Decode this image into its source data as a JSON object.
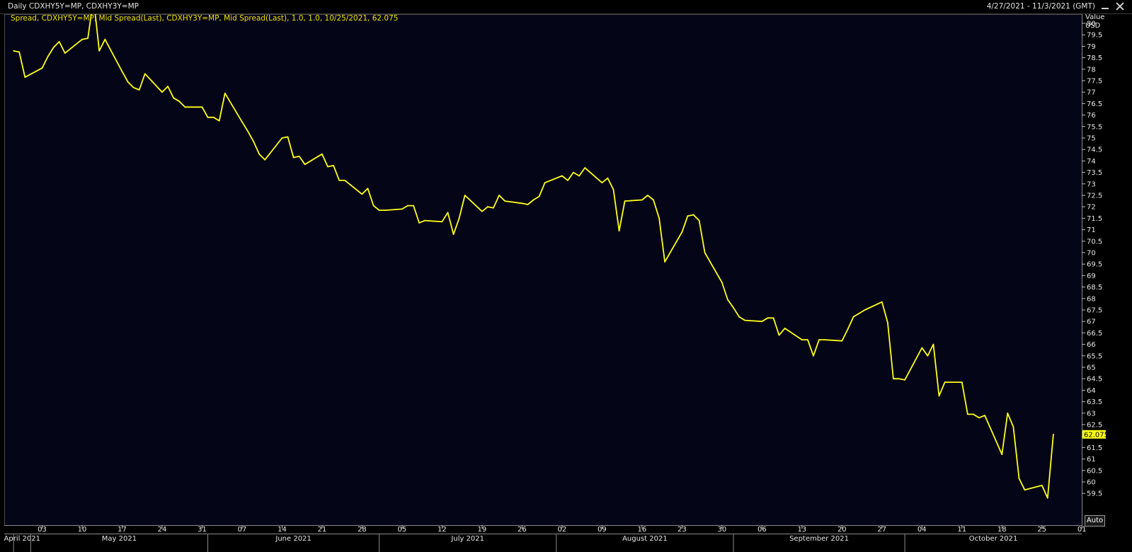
{
  "window": {
    "title": "Daily CDXHY5Y=MP, CDXHY3Y=MP",
    "date_range": "4/27/2021 - 11/3/2021 (GMT)"
  },
  "legend": {
    "text": "Spread, CDXHY5Y=MP, Mid Spread(Last), CDXHY3Y=MP, Mid Spread(Last),  1.0, 1.0, 10/25/2021, 62.075"
  },
  "controls": {
    "auto_label": "Auto"
  },
  "colors": {
    "background": "#000000",
    "plot_background": "#050518",
    "line": "#ffff1a",
    "grid": "#2c3040"
  },
  "chart_data": {
    "type": "line",
    "title": "",
    "ylabel": "Value\nUSD",
    "ylabel_lines": [
      "Value",
      "USD"
    ],
    "xlabel": "",
    "legend_placement": "top-left",
    "grid": false,
    "x_range": [
      "2021-04-28",
      "2021-11-01"
    ],
    "ylim": [
      59.25,
      81.0
    ],
    "y_ticks": [
      59.5,
      60,
      60.5,
      61,
      61.5,
      62,
      62.5,
      63,
      63.5,
      64,
      64.5,
      65,
      65.5,
      66,
      66.5,
      67,
      67.5,
      68,
      68.5,
      69,
      69.5,
      70,
      70.5,
      71,
      71.5,
      72,
      72.5,
      73,
      73.5,
      74,
      74.5,
      75,
      75.5,
      76,
      76.5,
      77,
      77.5,
      78,
      78.5,
      79,
      79.5,
      80
    ],
    "y_tick_labels": [
      "59.5",
      "60",
      "60.5",
      "61",
      "61.5",
      "62",
      "62.5",
      "63",
      "63.5",
      "64",
      "64.5",
      "65",
      "65.5",
      "66",
      "66.5",
      "67",
      "67.5",
      "68",
      "68.5",
      "69",
      "69.5",
      "70",
      "70.5",
      "71",
      "71.5",
      "72",
      "72.5",
      "73",
      "73.5",
      "74",
      "74.5",
      "75",
      "75.5",
      "76",
      "76.5",
      "77",
      "77.5",
      "78",
      "78.5",
      "79",
      "79.5",
      "80"
    ],
    "x_ticks": [
      {
        "date": "2021-05-03",
        "label": "03"
      },
      {
        "date": "2021-05-10",
        "label": "10"
      },
      {
        "date": "2021-05-17",
        "label": "17"
      },
      {
        "date": "2021-05-24",
        "label": "24"
      },
      {
        "date": "2021-05-31",
        "label": "31"
      },
      {
        "date": "2021-06-07",
        "label": "07"
      },
      {
        "date": "2021-06-14",
        "label": "14"
      },
      {
        "date": "2021-06-21",
        "label": "21"
      },
      {
        "date": "2021-06-28",
        "label": "28"
      },
      {
        "date": "2021-07-05",
        "label": "05"
      },
      {
        "date": "2021-07-12",
        "label": "12"
      },
      {
        "date": "2021-07-19",
        "label": "19"
      },
      {
        "date": "2021-07-26",
        "label": "26"
      },
      {
        "date": "2021-08-02",
        "label": "02"
      },
      {
        "date": "2021-08-09",
        "label": "09"
      },
      {
        "date": "2021-08-16",
        "label": "16"
      },
      {
        "date": "2021-08-23",
        "label": "23"
      },
      {
        "date": "2021-08-30",
        "label": "30"
      },
      {
        "date": "2021-09-06",
        "label": "06"
      },
      {
        "date": "2021-09-13",
        "label": "13"
      },
      {
        "date": "2021-09-20",
        "label": "20"
      },
      {
        "date": "2021-09-27",
        "label": "27"
      },
      {
        "date": "2021-10-04",
        "label": "04"
      },
      {
        "date": "2021-10-11",
        "label": "11"
      },
      {
        "date": "2021-10-18",
        "label": "18"
      },
      {
        "date": "2021-10-25",
        "label": "25"
      },
      {
        "date": "2021-11-01",
        "label": "01"
      }
    ],
    "month_labels": [
      {
        "start": "2021-04-28",
        "end": "2021-05-01",
        "label": "April 2021"
      },
      {
        "start": "2021-05-01",
        "end": "2021-06-01",
        "label": "May 2021"
      },
      {
        "start": "2021-06-01",
        "end": "2021-07-01",
        "label": "June 2021"
      },
      {
        "start": "2021-07-01",
        "end": "2021-08-01",
        "label": "July 2021"
      },
      {
        "start": "2021-08-01",
        "end": "2021-09-01",
        "label": "August 2021"
      },
      {
        "start": "2021-09-01",
        "end": "2021-10-01",
        "label": "September 2021"
      },
      {
        "start": "2021-10-01",
        "end": "2021-11-01",
        "label": "October 2021"
      }
    ],
    "last_value": 62.075,
    "last_value_label": "62.075",
    "series": [
      {
        "values": [
          [
            "2021-04-28",
            78.8
          ],
          [
            "2021-04-29",
            78.75
          ],
          [
            "2021-04-30",
            77.65
          ],
          [
            "2021-05-03",
            78.05
          ],
          [
            "2021-05-04",
            78.55
          ],
          [
            "2021-05-05",
            78.95
          ],
          [
            "2021-05-06",
            79.2
          ],
          [
            "2021-05-07",
            78.7
          ],
          [
            "2021-05-10",
            79.3
          ],
          [
            "2021-05-11",
            79.35
          ],
          [
            "2021-05-12",
            81.1
          ],
          [
            "2021-05-13",
            78.8
          ],
          [
            "2021-05-14",
            79.3
          ],
          [
            "2021-05-17",
            77.9
          ],
          [
            "2021-05-18",
            77.45
          ],
          [
            "2021-05-19",
            77.2
          ],
          [
            "2021-05-20",
            77.1
          ],
          [
            "2021-05-21",
            77.8
          ],
          [
            "2021-05-24",
            77.0
          ],
          [
            "2021-05-25",
            77.25
          ],
          [
            "2021-05-26",
            76.75
          ],
          [
            "2021-05-27",
            76.6
          ],
          [
            "2021-05-28",
            76.35
          ],
          [
            "2021-05-31",
            76.35
          ],
          [
            "2021-06-01",
            75.9
          ],
          [
            "2021-06-02",
            75.9
          ],
          [
            "2021-06-03",
            75.75
          ],
          [
            "2021-06-04",
            76.95
          ],
          [
            "2021-06-07",
            75.7
          ],
          [
            "2021-06-08",
            75.3
          ],
          [
            "2021-06-09",
            74.85
          ],
          [
            "2021-06-10",
            74.3
          ],
          [
            "2021-06-11",
            74.05
          ],
          [
            "2021-06-14",
            75.0
          ],
          [
            "2021-06-15",
            75.05
          ],
          [
            "2021-06-16",
            74.15
          ],
          [
            "2021-06-17",
            74.2
          ],
          [
            "2021-06-18",
            73.85
          ],
          [
            "2021-06-21",
            74.3
          ],
          [
            "2021-06-22",
            73.75
          ],
          [
            "2021-06-23",
            73.8
          ],
          [
            "2021-06-24",
            73.15
          ],
          [
            "2021-06-25",
            73.15
          ],
          [
            "2021-06-28",
            72.55
          ],
          [
            "2021-06-29",
            72.8
          ],
          [
            "2021-06-30",
            72.05
          ],
          [
            "2021-07-01",
            71.85
          ],
          [
            "2021-07-02",
            71.85
          ],
          [
            "2021-07-05",
            71.9
          ],
          [
            "2021-07-06",
            72.05
          ],
          [
            "2021-07-07",
            72.05
          ],
          [
            "2021-07-08",
            71.3
          ],
          [
            "2021-07-09",
            71.4
          ],
          [
            "2021-07-12",
            71.35
          ],
          [
            "2021-07-13",
            71.75
          ],
          [
            "2021-07-14",
            70.8
          ],
          [
            "2021-07-15",
            71.5
          ],
          [
            "2021-07-16",
            72.5
          ],
          [
            "2021-07-19",
            71.8
          ],
          [
            "2021-07-20",
            72.0
          ],
          [
            "2021-07-21",
            71.95
          ],
          [
            "2021-07-22",
            72.5
          ],
          [
            "2021-07-23",
            72.25
          ],
          [
            "2021-07-26",
            72.15
          ],
          [
            "2021-07-27",
            72.1
          ],
          [
            "2021-07-28",
            72.3
          ],
          [
            "2021-07-29",
            72.45
          ],
          [
            "2021-07-30",
            73.05
          ],
          [
            "2021-08-02",
            73.35
          ],
          [
            "2021-08-03",
            73.15
          ],
          [
            "2021-08-04",
            73.5
          ],
          [
            "2021-08-05",
            73.35
          ],
          [
            "2021-08-06",
            73.7
          ],
          [
            "2021-08-09",
            73.05
          ],
          [
            "2021-08-10",
            73.25
          ],
          [
            "2021-08-11",
            72.75
          ],
          [
            "2021-08-12",
            70.95
          ],
          [
            "2021-08-13",
            72.25
          ],
          [
            "2021-08-16",
            72.3
          ],
          [
            "2021-08-17",
            72.5
          ],
          [
            "2021-08-18",
            72.3
          ],
          [
            "2021-08-19",
            71.5
          ],
          [
            "2021-08-20",
            69.6
          ],
          [
            "2021-08-23",
            70.9
          ],
          [
            "2021-08-24",
            71.6
          ],
          [
            "2021-08-25",
            71.65
          ],
          [
            "2021-08-26",
            71.4
          ],
          [
            "2021-08-27",
            70.0
          ],
          [
            "2021-08-30",
            68.7
          ],
          [
            "2021-08-31",
            67.95
          ],
          [
            "2021-09-01",
            67.6
          ],
          [
            "2021-09-02",
            67.2
          ],
          [
            "2021-09-03",
            67.05
          ],
          [
            "2021-09-06",
            67.0
          ],
          [
            "2021-09-07",
            67.15
          ],
          [
            "2021-09-08",
            67.15
          ],
          [
            "2021-09-09",
            66.4
          ],
          [
            "2021-09-10",
            66.7
          ],
          [
            "2021-09-13",
            66.2
          ],
          [
            "2021-09-14",
            66.2
          ],
          [
            "2021-09-15",
            65.5
          ],
          [
            "2021-09-16",
            66.2
          ],
          [
            "2021-09-17",
            66.2
          ],
          [
            "2021-09-20",
            66.15
          ],
          [
            "2021-09-21",
            66.65
          ],
          [
            "2021-09-22",
            67.2
          ],
          [
            "2021-09-23",
            67.35
          ],
          [
            "2021-09-24",
            67.5
          ],
          [
            "2021-09-27",
            67.85
          ],
          [
            "2021-09-28",
            66.95
          ],
          [
            "2021-09-29",
            64.5
          ],
          [
            "2021-09-30",
            64.5
          ],
          [
            "2021-10-01",
            64.45
          ],
          [
            "2021-10-04",
            65.85
          ],
          [
            "2021-10-05",
            65.5
          ],
          [
            "2021-10-06",
            66.0
          ],
          [
            "2021-10-07",
            63.75
          ],
          [
            "2021-10-08",
            64.35
          ],
          [
            "2021-10-11",
            64.35
          ],
          [
            "2021-10-12",
            62.95
          ],
          [
            "2021-10-13",
            62.95
          ],
          [
            "2021-10-14",
            62.8
          ],
          [
            "2021-10-15",
            62.9
          ],
          [
            "2021-10-18",
            61.2
          ],
          [
            "2021-10-19",
            63.0
          ],
          [
            "2021-10-20",
            62.4
          ],
          [
            "2021-10-21",
            60.15
          ],
          [
            "2021-10-22",
            59.65
          ],
          [
            "2021-10-25",
            59.85
          ],
          [
            "2021-10-26",
            59.3
          ],
          [
            "2021-10-27",
            62.075
          ]
        ]
      }
    ]
  }
}
